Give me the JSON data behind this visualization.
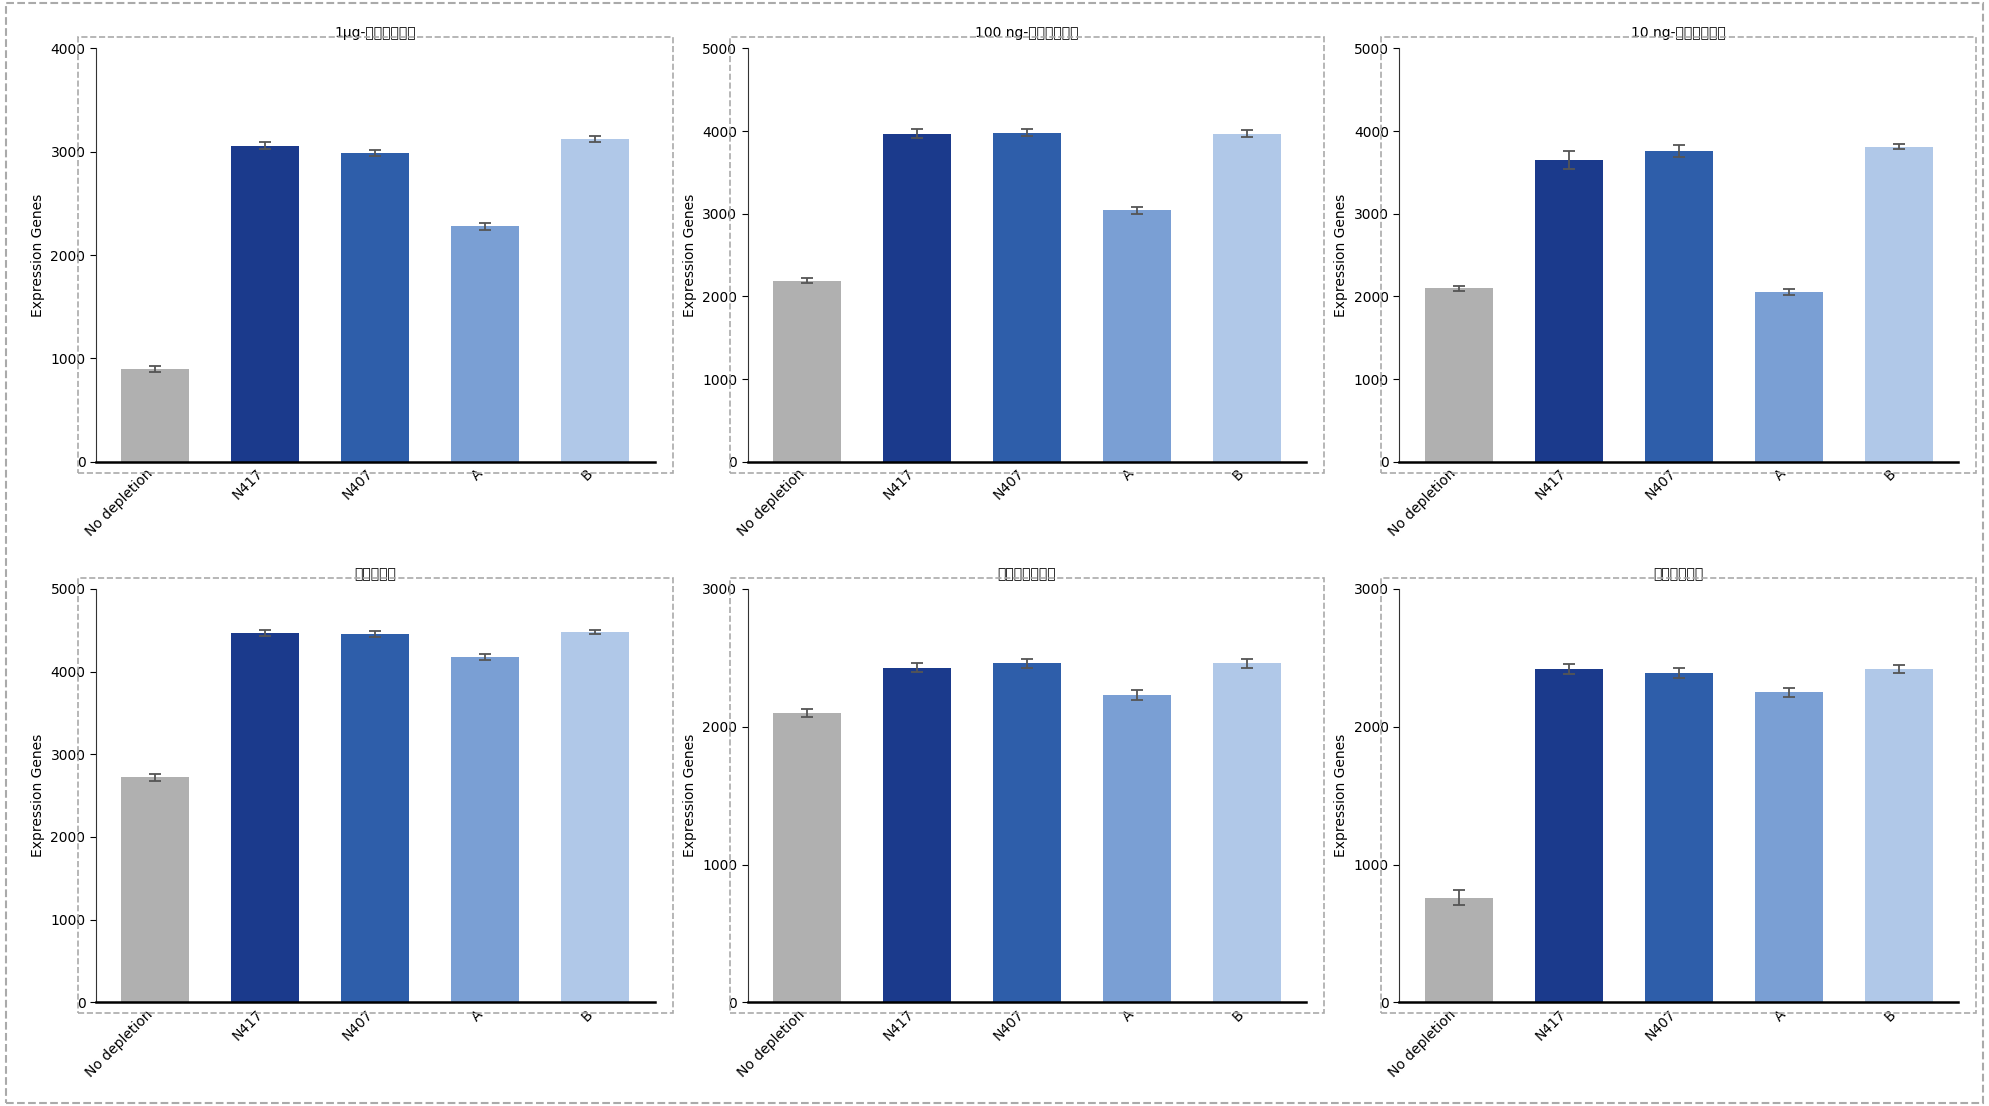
{
  "subplots": [
    {
      "title": "1μg-枯草芽孢杆菌",
      "ylim": [
        0,
        4000
      ],
      "yticks": [
        0,
        1000,
        2000,
        3000,
        4000
      ],
      "values": [
        900,
        3060,
        2990,
        2280,
        3120
      ],
      "errors": [
        30,
        35,
        30,
        35,
        30
      ],
      "colors": [
        "#b0b0b0",
        "#1b3a8c",
        "#2e5eaa",
        "#7a9fd4",
        "#b0c8e8"
      ]
    },
    {
      "title": "100 ng-枯草芽孢杆菌",
      "ylim": [
        0,
        5000
      ],
      "yticks": [
        0,
        1000,
        2000,
        3000,
        4000,
        5000
      ],
      "values": [
        2190,
        3970,
        3980,
        3040,
        3970
      ],
      "errors": [
        30,
        50,
        40,
        45,
        40
      ],
      "colors": [
        "#b0b0b0",
        "#1b3a8c",
        "#2e5eaa",
        "#7a9fd4",
        "#b0c8e8"
      ]
    },
    {
      "title": "10 ng-枯草芽孢杆菌",
      "ylim": [
        0,
        5000
      ],
      "yticks": [
        0,
        1000,
        2000,
        3000,
        4000,
        5000
      ],
      "values": [
        2100,
        3650,
        3760,
        2050,
        3810
      ],
      "errors": [
        30,
        110,
        70,
        35,
        30
      ],
      "colors": [
        "#b0b0b0",
        "#1b3a8c",
        "#2e5eaa",
        "#7a9fd4",
        "#b0c8e8"
      ]
    },
    {
      "title": "假单胞杆菌",
      "ylim": [
        0,
        5000
      ],
      "yticks": [
        0,
        1000,
        2000,
        3000,
        4000,
        5000
      ],
      "values": [
        2720,
        4470,
        4460,
        4180,
        4480
      ],
      "errors": [
        40,
        35,
        35,
        35,
        30
      ],
      "colors": [
        "#b0b0b0",
        "#1b3a8c",
        "#2e5eaa",
        "#7a9fd4",
        "#b0c8e8"
      ]
    },
    {
      "title": "金黄色葡萄球菌",
      "ylim": [
        0,
        3000
      ],
      "yticks": [
        0,
        1000,
        2000,
        3000
      ],
      "values": [
        2100,
        2430,
        2460,
        2230,
        2460
      ],
      "errors": [
        30,
        35,
        35,
        35,
        35
      ],
      "colors": [
        "#b0b0b0",
        "#1b3a8c",
        "#2e5eaa",
        "#7a9fd4",
        "#b0c8e8"
      ]
    },
    {
      "title": "銀色葡萄球菌",
      "ylim": [
        0,
        3000
      ],
      "yticks": [
        0,
        1000,
        2000,
        3000
      ],
      "values": [
        760,
        2420,
        2390,
        2250,
        2420
      ],
      "errors": [
        55,
        35,
        35,
        35,
        30
      ],
      "colors": [
        "#b0b0b0",
        "#1b3a8c",
        "#2e5eaa",
        "#7a9fd4",
        "#b0c8e8"
      ]
    }
  ],
  "categories": [
    "No depletion",
    "N417",
    "N407",
    "A",
    "B"
  ],
  "ylabel": "Expression Genes",
  "background_color": "#ffffff",
  "title_fontsize": 13,
  "label_fontsize": 10,
  "tick_fontsize": 10,
  "bar_width": 0.62
}
